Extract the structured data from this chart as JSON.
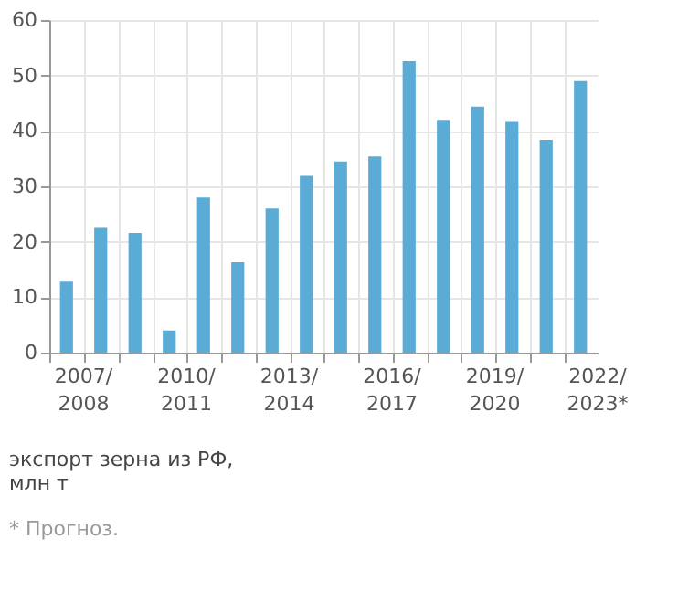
{
  "chart_data": {
    "type": "bar",
    "categories": [
      "2007/2008",
      null,
      null,
      "2010/2011",
      null,
      null,
      "2013/2014",
      null,
      null,
      "2016/2017",
      null,
      null,
      "2019/2020",
      null,
      null,
      "2022/2023*"
    ],
    "values": [
      12.8,
      22.5,
      21.6,
      4,
      28,
      16.3,
      26,
      31.9,
      34.5,
      35.4,
      52.6,
      42,
      44.4,
      41.8,
      38.4,
      49
    ],
    "color": "#5aacd6",
    "ylim": [
      0,
      60
    ],
    "yticks": [
      0,
      10,
      20,
      30,
      40,
      50,
      60
    ],
    "grid": true,
    "annotations": [
      "экспорт зерна из РФ, млн т",
      "* Прогноз."
    ]
  }
}
